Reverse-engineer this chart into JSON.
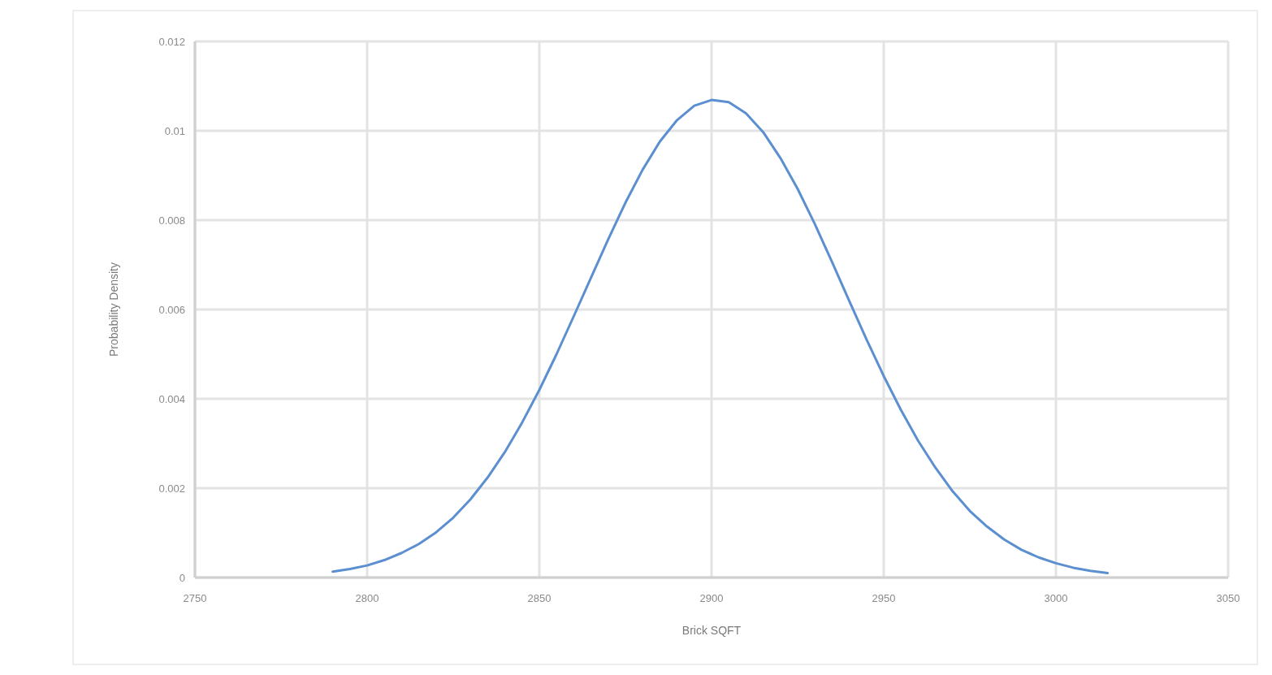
{
  "chart_data": {
    "type": "line",
    "xlabel": "Brick SQFT",
    "ylabel": "Probability Density",
    "x": [
      2790,
      2795,
      2800,
      2805,
      2810,
      2815,
      2820,
      2825,
      2830,
      2835,
      2840,
      2845,
      2850,
      2855,
      2860,
      2865,
      2870,
      2875,
      2880,
      2885,
      2890,
      2895,
      2900,
      2905,
      2910,
      2915,
      2920,
      2925,
      2930,
      2935,
      2940,
      2945,
      2950,
      2955,
      2960,
      2965,
      2970,
      2975,
      2980,
      2985,
      2990,
      2995,
      3000,
      3005,
      3010,
      3015
    ],
    "series": [
      {
        "color": "#5b8fd0",
        "values": [
          0.00013,
          0.00019,
          0.00027,
          0.00039,
          0.00055,
          0.00075,
          0.00101,
          0.00134,
          0.00175,
          0.00224,
          0.00281,
          0.00347,
          0.0042,
          0.005,
          0.00585,
          0.00671,
          0.00757,
          0.00839,
          0.00913,
          0.00976,
          0.01024,
          0.01056,
          0.01069,
          0.01064,
          0.01039,
          0.00997,
          0.00939,
          0.0087,
          0.00791,
          0.00706,
          0.00619,
          0.00533,
          0.00451,
          0.00375,
          0.00306,
          0.00246,
          0.00193,
          0.00149,
          0.00114,
          0.00085,
          0.00062,
          0.00045,
          0.00032,
          0.00022,
          0.00015,
          0.0001
        ]
      }
    ],
    "xlim": [
      2750,
      3050
    ],
    "xticks": [
      2750,
      2800,
      2850,
      2900,
      2950,
      3000,
      3050
    ],
    "ylim": [
      0,
      0.012
    ],
    "yticks": [
      0,
      0.002,
      0.004,
      0.006,
      0.008,
      0.01,
      0.012
    ],
    "grid": true,
    "marker": "none",
    "line_style": "solid"
  }
}
